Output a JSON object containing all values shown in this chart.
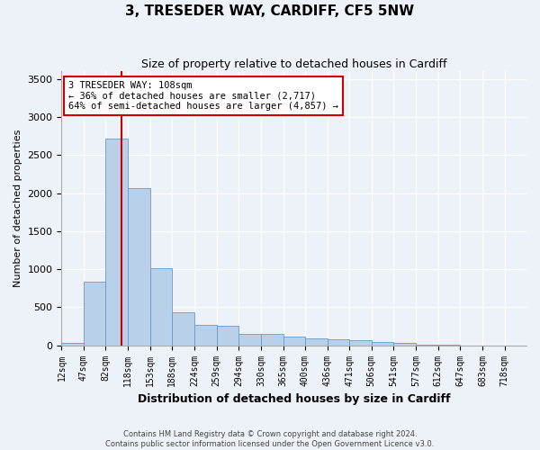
{
  "title": "3, TRESEDER WAY, CARDIFF, CF5 5NW",
  "subtitle": "Size of property relative to detached houses in Cardiff",
  "xlabel": "Distribution of detached houses by size in Cardiff",
  "ylabel": "Number of detached properties",
  "bin_edges": [
    12,
    47,
    82,
    118,
    153,
    188,
    224,
    259,
    294,
    330,
    365,
    400,
    436,
    471,
    506,
    541,
    577,
    612,
    647,
    683,
    718
  ],
  "bar_heights": [
    30,
    840,
    2720,
    2060,
    1010,
    430,
    270,
    255,
    155,
    145,
    115,
    95,
    80,
    70,
    40,
    30,
    10,
    5,
    2,
    1
  ],
  "bar_color": "#b8d0e8",
  "bar_edge_color": "#6699cc",
  "background_color": "#edf2f8",
  "property_line_x": 108,
  "property_line_color": "#cc0000",
  "annotation_text": "3 TRESEDER WAY: 108sqm\n← 36% of detached houses are smaller (2,717)\n64% of semi-detached houses are larger (4,857) →",
  "annotation_box_color": "#ffffff",
  "annotation_box_edge": "#cc0000",
  "ylim": [
    0,
    3600
  ],
  "yticks": [
    0,
    500,
    1000,
    1500,
    2000,
    2500,
    3000,
    3500
  ],
  "footnote": "Contains HM Land Registry data © Crown copyright and database right 2024.\nContains public sector information licensed under the Open Government Licence v3.0.",
  "title_fontsize": 11,
  "subtitle_fontsize": 9,
  "ylabel_fontsize": 8,
  "xlabel_fontsize": 9,
  "xtick_fontsize": 7,
  "ytick_fontsize": 8,
  "annotation_fontsize": 7.5,
  "footnote_fontsize": 6
}
